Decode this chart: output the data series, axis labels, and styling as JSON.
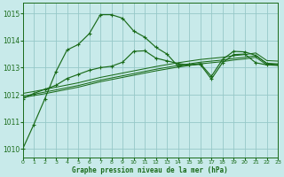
{
  "title": "Graphe pression niveau de la mer (hPa)",
  "bg_color": "#c8eaea",
  "grid_color": "#96c8c8",
  "line_color": "#1a6b1a",
  "xlim": [
    0,
    23
  ],
  "ylim": [
    1009.7,
    1015.4
  ],
  "yticks": [
    1010,
    1011,
    1012,
    1013,
    1014,
    1015
  ],
  "xticks": [
    0,
    1,
    2,
    3,
    4,
    5,
    6,
    7,
    8,
    9,
    10,
    11,
    12,
    13,
    14,
    15,
    16,
    17,
    18,
    19,
    20,
    21,
    22,
    23
  ],
  "line1": [
    1010.0,
    1010.9,
    1011.85,
    1012.85,
    1013.65,
    1013.85,
    1014.25,
    1014.95,
    1014.95,
    1014.82,
    1014.35,
    1014.12,
    1013.75,
    1013.5,
    1013.05,
    1013.1,
    1013.12,
    1012.58,
    1013.18,
    1013.48,
    1013.5,
    1013.18,
    1013.1,
    1013.1
  ],
  "line2": [
    1011.85,
    1012.05,
    1012.2,
    1012.35,
    1012.6,
    1012.75,
    1012.9,
    1013.0,
    1013.05,
    1013.2,
    1013.6,
    1013.62,
    1013.35,
    1013.25,
    1013.15,
    1013.1,
    1013.15,
    1012.68,
    1013.3,
    1013.6,
    1013.58,
    1013.45,
    1013.15,
    1013.1
  ],
  "straight1": [
    1011.9,
    1011.97,
    1012.04,
    1012.12,
    1012.2,
    1012.28,
    1012.38,
    1012.48,
    1012.56,
    1012.64,
    1012.72,
    1012.8,
    1012.88,
    1012.95,
    1013.02,
    1013.08,
    1013.14,
    1013.18,
    1013.22,
    1013.28,
    1013.32,
    1013.38,
    1013.1,
    1013.08
  ],
  "straight2": [
    1011.95,
    1012.02,
    1012.1,
    1012.18,
    1012.26,
    1012.34,
    1012.44,
    1012.54,
    1012.62,
    1012.7,
    1012.78,
    1012.86,
    1012.94,
    1013.01,
    1013.08,
    1013.14,
    1013.2,
    1013.24,
    1013.28,
    1013.34,
    1013.38,
    1013.44,
    1013.16,
    1013.14
  ],
  "straight3": [
    1012.05,
    1012.12,
    1012.2,
    1012.28,
    1012.36,
    1012.44,
    1012.54,
    1012.64,
    1012.72,
    1012.8,
    1012.88,
    1012.96,
    1013.04,
    1013.11,
    1013.18,
    1013.24,
    1013.3,
    1013.34,
    1013.38,
    1013.44,
    1013.48,
    1013.54,
    1013.26,
    1013.24
  ]
}
